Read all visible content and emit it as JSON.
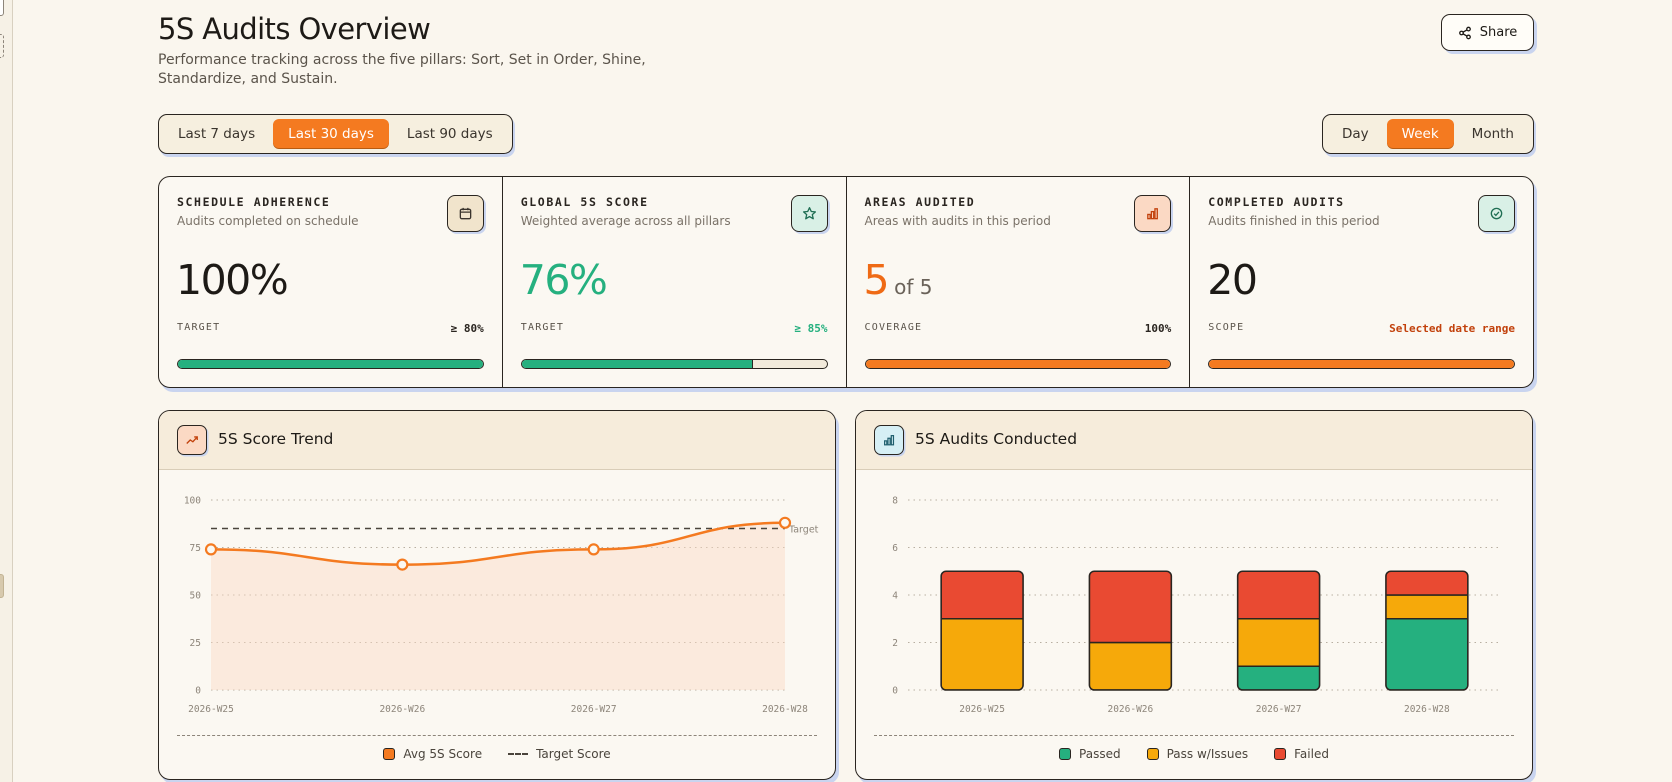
{
  "header": {
    "title": "5S Audits Overview",
    "subtitle": "Performance tracking across the five pillars: Sort, Set in Order, Shine, Standardize, and Sustain.",
    "share_label": "Share"
  },
  "range_filter": {
    "options": [
      "Last 7 days",
      "Last 30 days",
      "Last 90 days"
    ],
    "selected": "Last 30 days"
  },
  "granularity_filter": {
    "options": [
      "Day",
      "Week",
      "Month"
    ],
    "selected": "Week"
  },
  "kpis": [
    {
      "title": "SCHEDULE ADHERENCE",
      "desc": "Audits completed on schedule",
      "value": "100%",
      "value_suffix": "",
      "meta_label": "TARGET",
      "meta_value": "≥ 80%",
      "progress": 1.0,
      "icon": "calendar-icon",
      "value_color": "#1d1a16",
      "meta_color": "#2a2520",
      "bar_color": "#25b07f",
      "icon_bg": "#f1e4cc"
    },
    {
      "title": "GLOBAL 5S SCORE",
      "desc": "Weighted average across all pillars",
      "value": "76%",
      "value_suffix": "",
      "meta_label": "TARGET",
      "meta_value": "≥ 85%",
      "progress": 0.76,
      "icon": "star-icon",
      "value_color": "#25b07f",
      "meta_color": "#25b07f",
      "bar_color": "#25b07f",
      "icon_bg": "#d9f0e6"
    },
    {
      "title": "AREAS AUDITED",
      "desc": "Areas with audits in this period",
      "value": "5",
      "value_suffix": "of 5",
      "meta_label": "COVERAGE",
      "meta_value": "100%",
      "progress": 1.0,
      "icon": "bar-chart-icon",
      "value_color": "#ef6a15",
      "meta_color": "#2a2520",
      "bar_color": "#f47a20",
      "icon_bg": "#fbd9c4"
    },
    {
      "title": "COMPLETED AUDITS",
      "desc": "Audits finished in this period",
      "value": "20",
      "value_suffix": "",
      "meta_label": "SCOPE",
      "meta_value": "Selected date range",
      "progress": 1.0,
      "icon": "check-circle-icon",
      "value_color": "#1d1a16",
      "meta_color": "#c2410c",
      "bar_color": "#f47a20",
      "icon_bg": "#d9f0e6"
    }
  ],
  "charts": {
    "trend_title": "5S Score Trend",
    "audits_title": "5S Audits Conducted"
  },
  "chart_data": [
    {
      "type": "line",
      "title": "5S Score Trend",
      "x": [
        "2026-W25",
        "2026-W26",
        "2026-W27",
        "2026-W28"
      ],
      "series": [
        {
          "name": "Avg 5S Score",
          "values": [
            74,
            66,
            74,
            88
          ],
          "color": "#f47a20"
        },
        {
          "name": "Target Score",
          "values": [
            85,
            85,
            85,
            85
          ],
          "color": "#4a443c"
        }
      ],
      "ylim": [
        0,
        100
      ],
      "yticks": [
        0,
        25,
        50,
        75,
        100
      ],
      "target_label": "Target",
      "grid": true,
      "legend": "bottom-center"
    },
    {
      "type": "bar",
      "stacked": true,
      "title": "5S Audits Conducted",
      "categories": [
        "2026-W25",
        "2026-W26",
        "2026-W27",
        "2026-W28"
      ],
      "series": [
        {
          "name": "Passed",
          "values": [
            0,
            0,
            1,
            3
          ],
          "color": "#25b07f"
        },
        {
          "name": "Pass w/Issues",
          "values": [
            3,
            2,
            2,
            1
          ],
          "color": "#f6a90a"
        },
        {
          "name": "Failed",
          "values": [
            2,
            3,
            2,
            1
          ],
          "color": "#e94a32"
        }
      ],
      "ylim": [
        0,
        8
      ],
      "yticks": [
        0,
        2,
        4,
        6,
        8
      ],
      "grid": true,
      "legend": "bottom-center"
    }
  ]
}
